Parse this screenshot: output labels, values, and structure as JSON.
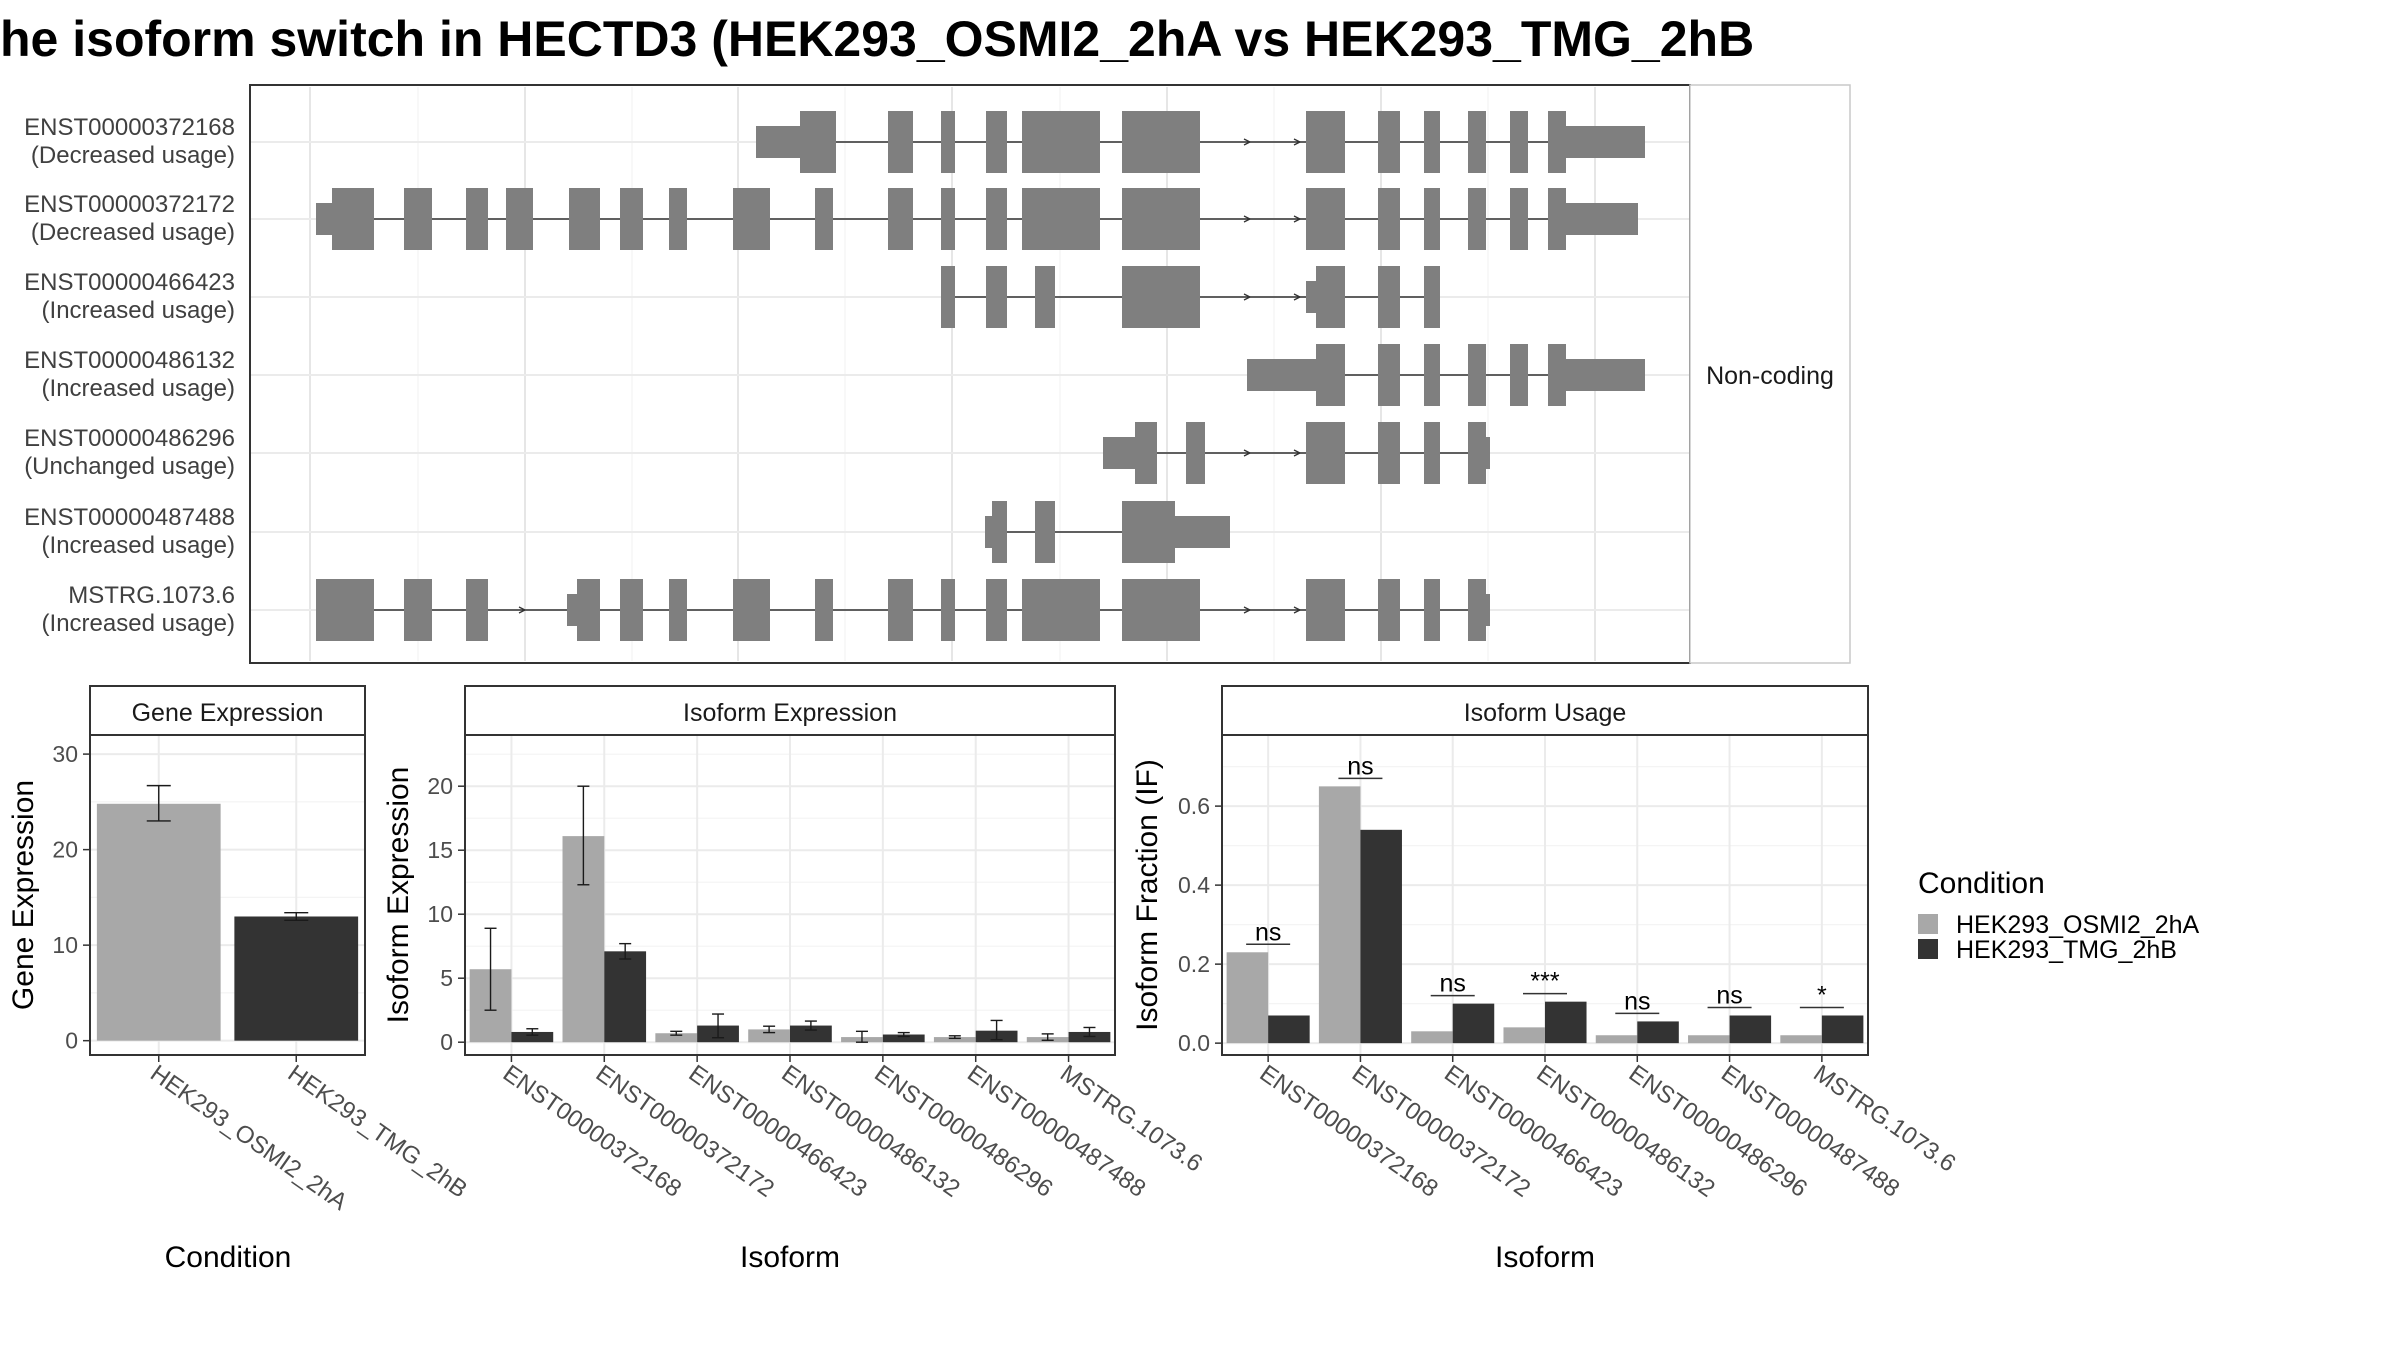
{
  "title": "he isoform switch in HECTD3 (HEK293_OSMI2_2hA vs HEK293_TMG_2hB",
  "colors": {
    "cond_a": "#a8a8a8",
    "cond_b": "#333333",
    "exon": "#7f7f7f",
    "strip_fill": "#ffffff",
    "panel_border": "#333333",
    "grid": "#ebebeb",
    "sig_line": "#333333"
  },
  "structure": {
    "facet_label": "Non-coding",
    "transcripts": [
      {
        "id": "ENST00000372168",
        "usage": "(Decreased usage)"
      },
      {
        "id": "ENST00000372172",
        "usage": "(Decreased usage)"
      },
      {
        "id": "ENST00000466423",
        "usage": "(Increased usage)"
      },
      {
        "id": "ENST00000486132",
        "usage": "(Increased usage)"
      },
      {
        "id": "ENST00000486296",
        "usage": "(Unchanged usage)"
      },
      {
        "id": "ENST00000487488",
        "usage": "(Increased usage)"
      },
      {
        "id": "MSTRG.1073.6",
        "usage": "(Increased usage)"
      }
    ]
  },
  "legend": {
    "title": "Condition",
    "items": [
      "HEK293_OSMI2_2hA",
      "HEK293_TMG_2hB"
    ]
  },
  "chart_data": [
    {
      "type": "bar",
      "strip": "Gene Expression",
      "xlabel": "Condition",
      "ylabel": "Gene Expression",
      "categories": [
        "HEK293_OSMI2_2hA",
        "HEK293_TMG_2hB"
      ],
      "values": [
        24.8,
        13.0
      ],
      "err_low": [
        23.0,
        12.6
      ],
      "err_high": [
        26.7,
        13.4
      ],
      "ylim": [
        -1.5,
        32
      ],
      "yticks": [
        0,
        10,
        20,
        30
      ],
      "grid": true
    },
    {
      "type": "bar",
      "strip": "Isoform Expression",
      "xlabel": "Isoform",
      "ylabel": "Isoform Expression",
      "categories": [
        "ENST00000372168",
        "ENST00000372172",
        "ENST00000466423",
        "ENST00000486132",
        "ENST00000486296",
        "ENST00000487488",
        "MSTRG.1073.6"
      ],
      "series": [
        {
          "name": "HEK293_OSMI2_2hA",
          "values": [
            5.7,
            16.1,
            0.7,
            1.0,
            0.4,
            0.4,
            0.4
          ],
          "err_low": [
            2.5,
            12.3,
            0.55,
            0.75,
            0.0,
            0.3,
            0.15
          ],
          "err_high": [
            8.9,
            20.0,
            0.85,
            1.25,
            0.85,
            0.5,
            0.65
          ]
        },
        {
          "name": "HEK293_TMG_2hB",
          "values": [
            0.8,
            7.1,
            1.3,
            1.3,
            0.6,
            0.9,
            0.8
          ],
          "err_low": [
            0.55,
            6.5,
            0.35,
            0.95,
            0.45,
            0.2,
            0.45
          ],
          "err_high": [
            1.05,
            7.7,
            2.2,
            1.65,
            0.75,
            1.7,
            1.15
          ]
        }
      ],
      "ylim": [
        -1.0,
        24
      ],
      "yticks": [
        0,
        5,
        10,
        15,
        20
      ],
      "grid": true
    },
    {
      "type": "bar",
      "strip": "Isoform Usage",
      "xlabel": "Isoform",
      "ylabel": "Isoform Fraction (IF)",
      "categories": [
        "ENST00000372168",
        "ENST00000372172",
        "ENST00000466423",
        "ENST00000486132",
        "ENST00000486296",
        "ENST00000487488",
        "MSTRG.1073.6"
      ],
      "series": [
        {
          "name": "HEK293_OSMI2_2hA",
          "values": [
            0.23,
            0.65,
            0.03,
            0.04,
            0.02,
            0.02,
            0.02
          ]
        },
        {
          "name": "HEK293_TMG_2hB",
          "values": [
            0.07,
            0.54,
            0.1,
            0.105,
            0.055,
            0.07,
            0.07
          ]
        }
      ],
      "significance": [
        "ns",
        "ns",
        "ns",
        "***",
        "ns",
        "ns",
        "*"
      ],
      "ylim": [
        -0.03,
        0.78
      ],
      "yticks": [
        0.0,
        0.2,
        0.4,
        0.6
      ],
      "ytick_labels": [
        "0.0",
        "0.2",
        "0.4",
        "0.6"
      ],
      "grid": true
    }
  ]
}
